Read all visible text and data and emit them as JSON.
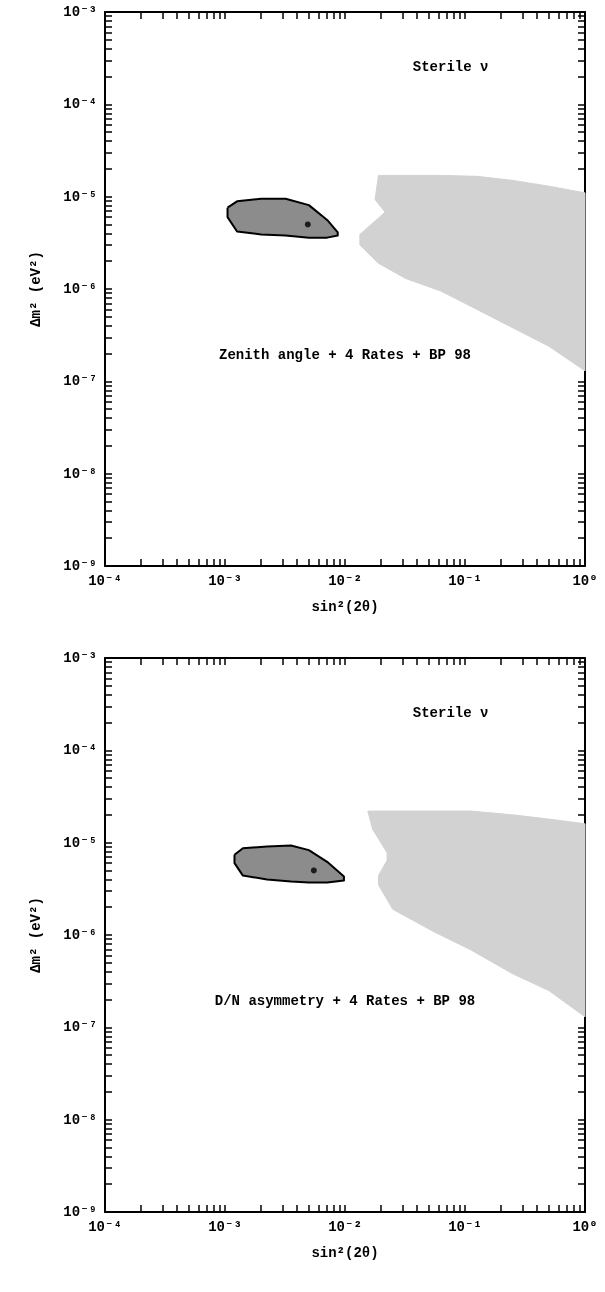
{
  "chart_data": [
    {
      "type": "area",
      "xlabel": "sin²(2θ)",
      "ylabel": "Δm² (eV²)",
      "log": "xy",
      "annotations": [
        "Sterile ν",
        "Zenith angle + 4 Rates + BP 98"
      ],
      "xlim": [
        0.0001,
        1
      ],
      "ylim": [
        1e-09,
        0.001
      ],
      "xticks": [
        {
          "value": 0.0001,
          "label": "10⁻⁴"
        },
        {
          "value": 0.0002,
          "label": null
        },
        {
          "value": 0.0003,
          "label": null
        },
        {
          "value": 0.0004,
          "label": null
        },
        {
          "value": 0.0005,
          "label": null
        },
        {
          "value": 0.0006,
          "label": null
        },
        {
          "value": 0.0007,
          "label": null
        },
        {
          "value": 0.0008,
          "label": null
        },
        {
          "value": 0.0009,
          "label": null
        },
        {
          "value": 0.001,
          "label": "10⁻³"
        },
        {
          "value": 0.002,
          "label": null
        },
        {
          "value": 0.003,
          "label": null
        },
        {
          "value": 0.004,
          "label": null
        },
        {
          "value": 0.005,
          "label": null
        },
        {
          "value": 0.006,
          "label": null
        },
        {
          "value": 0.007,
          "label": null
        },
        {
          "value": 0.008,
          "label": null
        },
        {
          "value": 0.009,
          "label": null
        },
        {
          "value": 0.01,
          "label": "10⁻²"
        },
        {
          "value": 0.02,
          "label": null
        },
        {
          "value": 0.03,
          "label": null
        },
        {
          "value": 0.04,
          "label": null
        },
        {
          "value": 0.05,
          "label": null
        },
        {
          "value": 0.06,
          "label": null
        },
        {
          "value": 0.07,
          "label": null
        },
        {
          "value": 0.08,
          "label": null
        },
        {
          "value": 0.09,
          "label": null
        },
        {
          "value": 0.1,
          "label": "10⁻¹"
        },
        {
          "value": 0.2,
          "label": null
        },
        {
          "value": 0.3,
          "label": null
        },
        {
          "value": 0.4,
          "label": null
        },
        {
          "value": 0.5,
          "label": null
        },
        {
          "value": 0.6,
          "label": null
        },
        {
          "value": 0.7,
          "label": null
        },
        {
          "value": 0.8,
          "label": null
        },
        {
          "value": 0.9,
          "label": null
        },
        {
          "value": 1,
          "label": "10⁰"
        }
      ],
      "yticks": [
        {
          "value": 1e-09,
          "label": "10⁻⁹"
        },
        {
          "value": 2e-09,
          "label": null
        },
        {
          "value": 3e-09,
          "label": null
        },
        {
          "value": 4e-09,
          "label": null
        },
        {
          "value": 5e-09,
          "label": null
        },
        {
          "value": 6e-09,
          "label": null
        },
        {
          "value": 7e-09,
          "label": null
        },
        {
          "value": 8e-09,
          "label": null
        },
        {
          "value": 9e-09,
          "label": null
        },
        {
          "value": 1e-08,
          "label": "10⁻⁸"
        },
        {
          "value": 2e-08,
          "label": null
        },
        {
          "value": 3e-08,
          "label": null
        },
        {
          "value": 4e-08,
          "label": null
        },
        {
          "value": 5e-08,
          "label": null
        },
        {
          "value": 6e-08,
          "label": null
        },
        {
          "value": 7e-08,
          "label": null
        },
        {
          "value": 8e-08,
          "label": null
        },
        {
          "value": 9e-08,
          "label": null
        },
        {
          "value": 1e-07,
          "label": "10⁻⁷"
        },
        {
          "value": 2e-07,
          "label": null
        },
        {
          "value": 3e-07,
          "label": null
        },
        {
          "value": 4e-07,
          "label": null
        },
        {
          "value": 5e-07,
          "label": null
        },
        {
          "value": 6e-07,
          "label": null
        },
        {
          "value": 7e-07,
          "label": null
        },
        {
          "value": 8e-07,
          "label": null
        },
        {
          "value": 9e-07,
          "label": null
        },
        {
          "value": 1e-06,
          "label": "10⁻⁶"
        },
        {
          "value": 2e-06,
          "label": null
        },
        {
          "value": 3e-06,
          "label": null
        },
        {
          "value": 4e-06,
          "label": null
        },
        {
          "value": 5e-06,
          "label": null
        },
        {
          "value": 6e-06,
          "label": null
        },
        {
          "value": 7e-06,
          "label": null
        },
        {
          "value": 8e-06,
          "label": null
        },
        {
          "value": 9e-06,
          "label": null
        },
        {
          "value": 1e-05,
          "label": "10⁻⁵"
        },
        {
          "value": 2e-05,
          "label": null
        },
        {
          "value": 3e-05,
          "label": null
        },
        {
          "value": 4e-05,
          "label": null
        },
        {
          "value": 5e-05,
          "label": null
        },
        {
          "value": 6e-05,
          "label": null
        },
        {
          "value": 7e-05,
          "label": null
        },
        {
          "value": 8e-05,
          "label": null
        },
        {
          "value": 9e-05,
          "label": null
        },
        {
          "value": 0.0001,
          "label": "10⁻⁴"
        },
        {
          "value": 0.0002,
          "label": null
        },
        {
          "value": 0.0003,
          "label": null
        },
        {
          "value": 0.0004,
          "label": null
        },
        {
          "value": 0.0005,
          "label": null
        },
        {
          "value": 0.0006,
          "label": null
        },
        {
          "value": 0.0007,
          "label": null
        },
        {
          "value": 0.0008,
          "label": null
        },
        {
          "value": 0.0009,
          "label": null
        },
        {
          "value": 0.001,
          "label": "10⁻³"
        }
      ],
      "series": [
        {
          "color": "#d2d2d2",
          "x": [
            0.019,
            0.063,
            0.126,
            0.25,
            0.5,
            1,
            1,
            0.5,
            0.25,
            0.126,
            0.063,
            0.032,
            0.019,
            0.0133,
            0.0133,
            0.0216,
            0.0178,
            0.019
          ],
          "values": [
            1.7e-05,
            1.7e-05,
            1.66e-05,
            1.5e-05,
            1.3e-05,
            1.1e-05,
            1.3e-07,
            2.4e-07,
            3.8e-07,
            6e-07,
            9.5e-07,
            1.3e-06,
            1.9e-06,
            3e-06,
            3.9e-06,
            6.8e-06,
            9.3e-06,
            1.7e-05
          ]
        },
        {
          "color": "#8c8c8c",
          "line_style": "solid",
          "x": [
            0.00105,
            0.00126,
            0.002,
            0.0032,
            0.005,
            0.0071,
            0.0087,
            0.0087,
            0.0071,
            0.005,
            0.0032,
            0.002,
            0.00126,
            0.00105,
            0.00105
          ],
          "values": [
            7.6e-06,
            8.9e-06,
            9.5e-06,
            9.5e-06,
            8.1e-06,
            5.6e-06,
            4.1e-06,
            3.8e-06,
            3.6e-06,
            3.6e-06,
            3.8e-06,
            3.9e-06,
            4.2e-06,
            6e-06,
            7.6e-06
          ]
        },
        {
          "type": "scatter",
          "color": "#000000",
          "marker": "circle",
          "x": [
            0.0049
          ],
          "values": [
            5e-06
          ]
        }
      ]
    },
    {
      "type": "area",
      "xlabel": "sin²(2θ)",
      "ylabel": "Δm² (eV²)",
      "log": "xy",
      "annotations": [
        "Sterile ν",
        "D/N asymmetry + 4 Rates + BP 98"
      ],
      "xlim": [
        0.0001,
        1
      ],
      "ylim": [
        1e-09,
        0.001
      ],
      "xticks": [
        {
          "value": 0.0001,
          "label": "10⁻⁴"
        },
        {
          "value": 0.0002,
          "label": null
        },
        {
          "value": 0.0003,
          "label": null
        },
        {
          "value": 0.0004,
          "label": null
        },
        {
          "value": 0.0005,
          "label": null
        },
        {
          "value": 0.0006,
          "label": null
        },
        {
          "value": 0.0007,
          "label": null
        },
        {
          "value": 0.0008,
          "label": null
        },
        {
          "value": 0.0009,
          "label": null
        },
        {
          "value": 0.001,
          "label": "10⁻³"
        },
        {
          "value": 0.002,
          "label": null
        },
        {
          "value": 0.003,
          "label": null
        },
        {
          "value": 0.004,
          "label": null
        },
        {
          "value": 0.005,
          "label": null
        },
        {
          "value": 0.006,
          "label": null
        },
        {
          "value": 0.007,
          "label": null
        },
        {
          "value": 0.008,
          "label": null
        },
        {
          "value": 0.009,
          "label": null
        },
        {
          "value": 0.01,
          "label": "10⁻²"
        },
        {
          "value": 0.02,
          "label": null
        },
        {
          "value": 0.03,
          "label": null
        },
        {
          "value": 0.04,
          "label": null
        },
        {
          "value": 0.05,
          "label": null
        },
        {
          "value": 0.06,
          "label": null
        },
        {
          "value": 0.07,
          "label": null
        },
        {
          "value": 0.08,
          "label": null
        },
        {
          "value": 0.09,
          "label": null
        },
        {
          "value": 0.1,
          "label": "10⁻¹"
        },
        {
          "value": 0.2,
          "label": null
        },
        {
          "value": 0.3,
          "label": null
        },
        {
          "value": 0.4,
          "label": null
        },
        {
          "value": 0.5,
          "label": null
        },
        {
          "value": 0.6,
          "label": null
        },
        {
          "value": 0.7,
          "label": null
        },
        {
          "value": 0.8,
          "label": null
        },
        {
          "value": 0.9,
          "label": null
        },
        {
          "value": 1,
          "label": "10⁰"
        }
      ],
      "yticks": [
        {
          "value": 1e-09,
          "label": "10⁻⁹"
        },
        {
          "value": 2e-09,
          "label": null
        },
        {
          "value": 3e-09,
          "label": null
        },
        {
          "value": 4e-09,
          "label": null
        },
        {
          "value": 5e-09,
          "label": null
        },
        {
          "value": 6e-09,
          "label": null
        },
        {
          "value": 7e-09,
          "label": null
        },
        {
          "value": 8e-09,
          "label": null
        },
        {
          "value": 9e-09,
          "label": null
        },
        {
          "value": 1e-08,
          "label": "10⁻⁸"
        },
        {
          "value": 2e-08,
          "label": null
        },
        {
          "value": 3e-08,
          "label": null
        },
        {
          "value": 4e-08,
          "label": null
        },
        {
          "value": 5e-08,
          "label": null
        },
        {
          "value": 6e-08,
          "label": null
        },
        {
          "value": 7e-08,
          "label": null
        },
        {
          "value": 8e-08,
          "label": null
        },
        {
          "value": 9e-08,
          "label": null
        },
        {
          "value": 1e-07,
          "label": "10⁻⁷"
        },
        {
          "value": 2e-07,
          "label": null
        },
        {
          "value": 3e-07,
          "label": null
        },
        {
          "value": 4e-07,
          "label": null
        },
        {
          "value": 5e-07,
          "label": null
        },
        {
          "value": 6e-07,
          "label": null
        },
        {
          "value": 7e-07,
          "label": null
        },
        {
          "value": 8e-07,
          "label": null
        },
        {
          "value": 9e-07,
          "label": null
        },
        {
          "value": 1e-06,
          "label": "10⁻⁶"
        },
        {
          "value": 2e-06,
          "label": null
        },
        {
          "value": 3e-06,
          "label": null
        },
        {
          "value": 4e-06,
          "label": null
        },
        {
          "value": 5e-06,
          "label": null
        },
        {
          "value": 6e-06,
          "label": null
        },
        {
          "value": 7e-06,
          "label": null
        },
        {
          "value": 8e-06,
          "label": null
        },
        {
          "value": 9e-06,
          "label": null
        },
        {
          "value": 1e-05,
          "label": "10⁻⁵"
        },
        {
          "value": 2e-05,
          "label": null
        },
        {
          "value": 3e-05,
          "label": null
        },
        {
          "value": 4e-05,
          "label": null
        },
        {
          "value": 5e-05,
          "label": null
        },
        {
          "value": 6e-05,
          "label": null
        },
        {
          "value": 7e-05,
          "label": null
        },
        {
          "value": 8e-05,
          "label": null
        },
        {
          "value": 9e-05,
          "label": null
        },
        {
          "value": 0.0001,
          "label": "10⁻⁴"
        },
        {
          "value": 0.0002,
          "label": null
        },
        {
          "value": 0.0003,
          "label": null
        },
        {
          "value": 0.0004,
          "label": null
        },
        {
          "value": 0.0005,
          "label": null
        },
        {
          "value": 0.0006,
          "label": null
        },
        {
          "value": 0.0007,
          "label": null
        },
        {
          "value": 0.0008,
          "label": null
        },
        {
          "value": 0.0009,
          "label": null
        },
        {
          "value": 0.001,
          "label": "10⁻³"
        }
      ],
      "series": [
        {
          "color": "#d2d2d2",
          "x": [
            0.0155,
            0.054,
            0.112,
            0.25,
            0.5,
            1,
            1,
            0.5,
            0.25,
            0.112,
            0.054,
            0.025,
            0.019,
            0.019,
            0.0224,
            0.0224,
            0.017,
            0.0155
          ],
          "values": [
            2.2e-05,
            2.2e-05,
            2.2e-05,
            2e-05,
            1.8e-05,
            1.6e-05,
            1.3e-07,
            2.5e-07,
            3.8e-07,
            6.9e-07,
            1.1e-06,
            1.9e-06,
            3.5e-06,
            4.4e-06,
            6.4e-06,
            7.8e-06,
            1.4e-05,
            2.2e-05
          ]
        },
        {
          "color": "#8c8c8c",
          "line_style": "solid",
          "x": [
            0.0012,
            0.00141,
            0.00224,
            0.00355,
            0.005,
            0.0071,
            0.0098,
            0.0098,
            0.0071,
            0.005,
            0.00355,
            0.00224,
            0.00141,
            0.0012,
            0.0012
          ],
          "values": [
            7.4e-06,
            8.7e-06,
            9.1e-06,
            9.3e-06,
            8.3e-06,
            6.2e-06,
            4.3e-06,
            3.9e-06,
            3.7e-06,
            3.7e-06,
            3.8e-06,
            4e-06,
            4.4e-06,
            6e-06,
            7.4e-06
          ]
        },
        {
          "type": "scatter",
          "color": "#000000",
          "marker": "circle",
          "x": [
            0.0055
          ],
          "values": [
            5e-06
          ]
        }
      ]
    }
  ]
}
